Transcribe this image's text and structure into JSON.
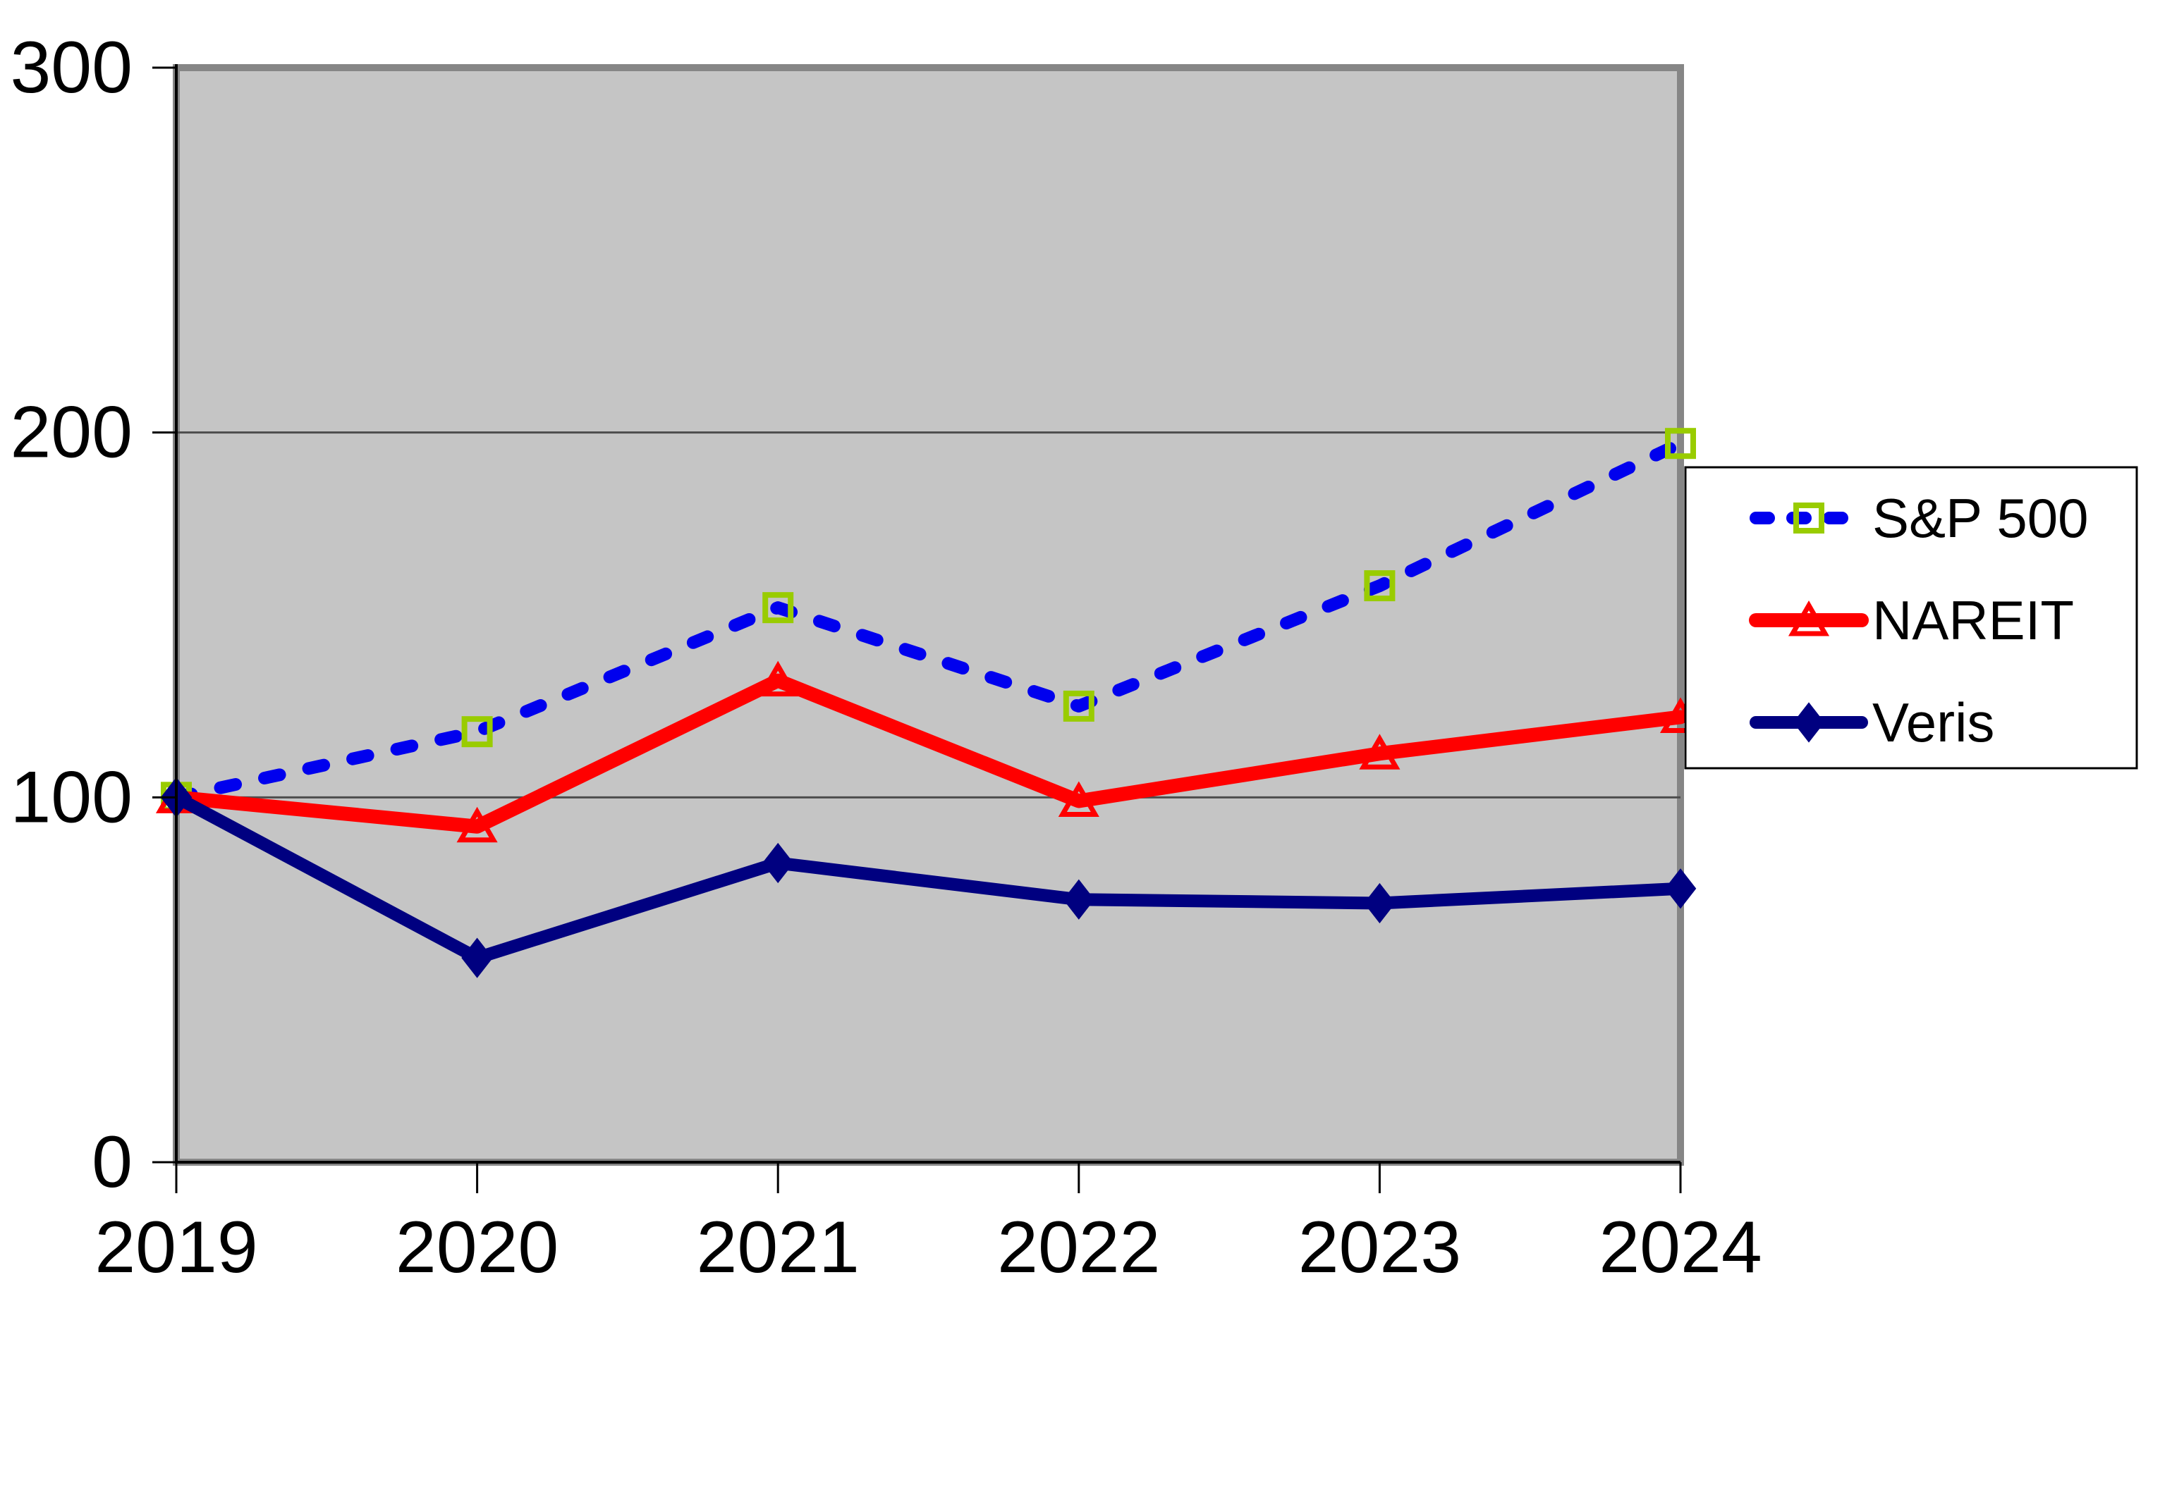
{
  "page": {
    "background": "#FFFFFF"
  },
  "chart_data": {
    "type": "line",
    "title": "",
    "x": [
      "2019",
      "2020",
      "2021",
      "2022",
      "2023",
      "2024"
    ],
    "series": [
      {
        "name": "S&P 500",
        "values": [
          100,
          118,
          152,
          125,
          158,
          197
        ],
        "color": "#0000EE",
        "line_style": "dashed",
        "line_width": 18,
        "marker": "open-square",
        "marker_color": "#99CC00"
      },
      {
        "name": "NAREIT",
        "values": [
          100,
          92,
          132,
          99,
          112,
          122
        ],
        "color": "#FF0000",
        "line_style": "solid",
        "line_width": 20,
        "marker": "open-triangle",
        "marker_color": "#FF0000"
      },
      {
        "name": "Veris",
        "values": [
          100,
          56,
          82,
          72,
          71,
          75
        ],
        "color": "#000080",
        "line_style": "solid",
        "line_width": 18,
        "marker": "filled-diamond",
        "marker_color": "#000080"
      }
    ],
    "ylim": [
      0,
      300
    ],
    "yticks": [
      0,
      100,
      200,
      300
    ],
    "ytick_labels": [
      "0",
      "100",
      "200",
      "300"
    ],
    "grid": true,
    "gridline_color": "#4D4D4D",
    "plot_bg": "#C5C5C5",
    "plot_border_color": "#868686",
    "axis_color": "#000000",
    "legend_position": "right-inside",
    "legend_bg": "#FFFFFF",
    "legend_border_color": "#000000"
  }
}
